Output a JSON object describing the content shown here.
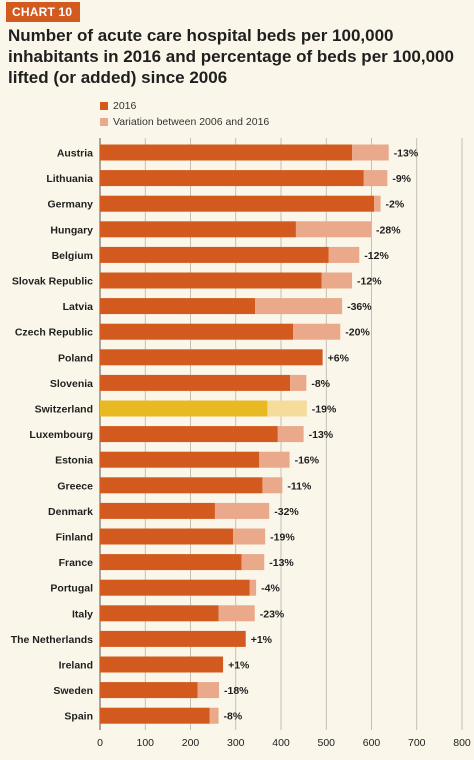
{
  "badge": "CHART 10",
  "title": "Number of acute care hospital beds per 100,000 inhabitants in 2016 and percentage of beds per 100,000 lifted (or added) since 2006",
  "legend": [
    {
      "label": "2016",
      "color": "#d35a1f"
    },
    {
      "label": "Variation between 2006 and 2016",
      "color": "#e9a98a"
    }
  ],
  "colors": {
    "bar_2016": "#d35a1f",
    "bar_variation": "#e9a98a",
    "highlight_2016": "#e8b923",
    "highlight_variation": "#f5dc9a",
    "grid": "#b7b2a8"
  },
  "chart_data": {
    "type": "bar",
    "orientation": "horizontal",
    "stacked": true,
    "xlim": [
      0,
      800
    ],
    "xticks": [
      0,
      100,
      200,
      300,
      400,
      500,
      600,
      700,
      800
    ],
    "grid": true,
    "legend_position": "top-left",
    "highlight_category": "Switzerland",
    "categories": [
      "Austria",
      "Lithuania",
      "Germany",
      "Hungary",
      "Belgium",
      "Slovak Republic",
      "Latvia",
      "Czech Republic",
      "Poland",
      "Slovenia",
      "Switzerland",
      "Luxembourg",
      "Estonia",
      "Greece",
      "Denmark",
      "Finland",
      "France",
      "Portugal",
      "Italy",
      "The Netherlands",
      "Ireland",
      "Sweden",
      "Spain"
    ],
    "series": [
      {
        "name": "2016",
        "values": [
          557,
          583,
          606,
          433,
          505,
          490,
          343,
          427,
          492,
          420,
          370,
          393,
          352,
          359,
          254,
          294,
          313,
          331,
          262,
          322,
          272,
          216,
          242
        ]
      },
      {
        "name": "Variation between 2006 and 2016",
        "values": [
          81,
          52,
          14,
          166,
          68,
          67,
          192,
          104,
          0,
          36,
          87,
          57,
          67,
          44,
          120,
          71,
          50,
          14,
          80,
          0,
          0,
          47,
          20
        ]
      }
    ],
    "data_labels": [
      "-13%",
      "-9%",
      "-2%",
      "-28%",
      "-12%",
      "-12%",
      "-36%",
      "-20%",
      "+6%",
      "-8%",
      "-19%",
      "-13%",
      "-16%",
      "-11%",
      "-32%",
      "-19%",
      "-13%",
      "-4%",
      "-23%",
      "+1%",
      "+1%",
      "-18%",
      "-8%"
    ]
  }
}
